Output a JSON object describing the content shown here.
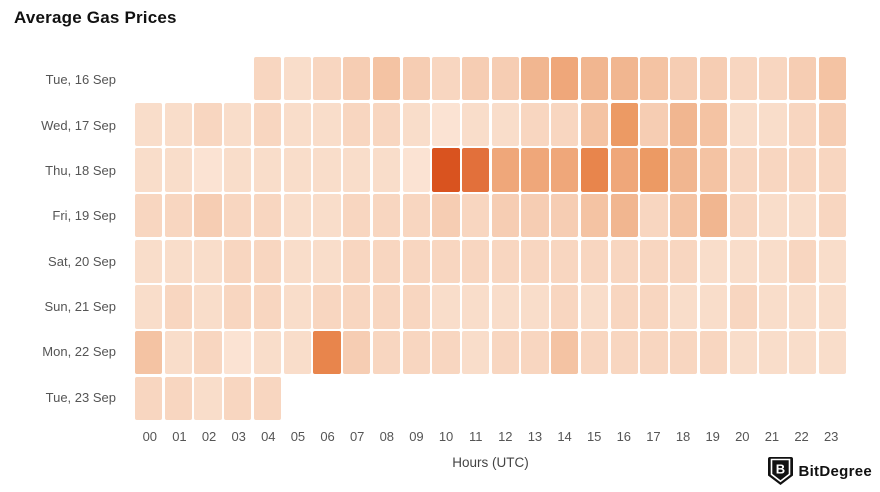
{
  "title": "Average Gas Prices",
  "chart_data": {
    "type": "heatmap",
    "title": "Average Gas Prices",
    "xlabel": "Hours (UTC)",
    "ylabel": "",
    "x_labels": [
      "00",
      "01",
      "02",
      "03",
      "04",
      "05",
      "06",
      "07",
      "08",
      "09",
      "10",
      "11",
      "12",
      "13",
      "14",
      "15",
      "16",
      "17",
      "18",
      "19",
      "20",
      "21",
      "22",
      "23"
    ],
    "y_labels": [
      "Tue, 16 Sep",
      "Wed, 17 Sep",
      "Thu, 18 Sep",
      "Fri, 19 Sep",
      "Sat, 20 Sep",
      "Sun, 21 Sep",
      "Mon, 22 Sep",
      "Tue, 23 Sep"
    ],
    "legend": "none",
    "grid": "off",
    "value_scale": {
      "min": 0,
      "max": 10,
      "palette_low_to_high": [
        "#fbe3d3",
        "#f9ddca",
        "#f8d6c0",
        "#f6cdb3",
        "#f4c3a3",
        "#f1b690",
        "#efa77a",
        "#ec9a64",
        "#e8854c",
        "#e2703b",
        "#d9531f"
      ]
    },
    "cells_note": "intensity level 0-10 per cell, null = no data shown",
    "cells": [
      [
        null,
        null,
        null,
        null,
        2,
        1,
        2,
        3,
        4,
        3,
        2,
        3,
        3,
        5,
        6,
        5,
        5,
        4,
        3,
        3,
        2,
        2,
        3,
        4
      ],
      [
        1,
        1,
        2,
        1,
        2,
        1,
        1,
        2,
        2,
        1,
        0,
        1,
        1,
        2,
        2,
        4,
        7,
        3,
        5,
        4,
        1,
        1,
        2,
        3
      ],
      [
        1,
        1,
        0,
        1,
        1,
        1,
        1,
        1,
        1,
        0,
        10,
        9,
        6,
        6,
        6,
        8,
        6,
        7,
        5,
        4,
        2,
        2,
        2,
        2
      ],
      [
        2,
        2,
        3,
        2,
        2,
        1,
        1,
        2,
        2,
        2,
        3,
        2,
        3,
        3,
        3,
        4,
        5,
        2,
        4,
        5,
        2,
        1,
        1,
        2
      ],
      [
        1,
        1,
        1,
        2,
        2,
        1,
        1,
        2,
        2,
        2,
        2,
        2,
        2,
        2,
        2,
        2,
        2,
        2,
        2,
        1,
        1,
        1,
        2,
        1
      ],
      [
        1,
        2,
        1,
        2,
        2,
        1,
        2,
        2,
        2,
        2,
        1,
        1,
        1,
        1,
        2,
        1,
        2,
        2,
        1,
        1,
        2,
        1,
        1,
        1
      ],
      [
        4,
        1,
        2,
        0,
        1,
        1,
        8,
        3,
        2,
        2,
        2,
        1,
        2,
        2,
        4,
        2,
        2,
        2,
        2,
        2,
        1,
        1,
        1,
        1
      ],
      [
        2,
        2,
        1,
        2,
        2,
        null,
        null,
        null,
        null,
        null,
        null,
        null,
        null,
        null,
        null,
        null,
        null,
        null,
        null,
        null,
        null,
        null,
        null,
        null
      ]
    ]
  },
  "colors": {
    "title_color": "#111111",
    "axis_label_color": "#555555",
    "background": "#ffffff"
  },
  "watermark": {
    "brand": "BitDegree",
    "icon": "bitdegree-shield-logo"
  }
}
